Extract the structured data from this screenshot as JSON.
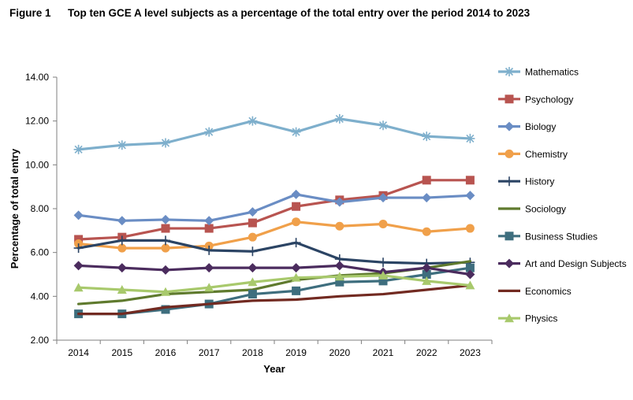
{
  "figure": {
    "number": "Figure 1",
    "title": "Top ten GCE A level subjects as a percentage of the total entry over the period 2014 to 2023"
  },
  "chart_data": {
    "type": "line",
    "title": "Top ten GCE A level subjects as a percentage of the total entry over the period 2014 to 2023",
    "xlabel": "Year",
    "ylabel": "Percentage of total entry",
    "categories": [
      "2014",
      "2015",
      "2016",
      "2017",
      "2018",
      "2019",
      "2020",
      "2021",
      "2022",
      "2023"
    ],
    "ylim": [
      2,
      14
    ],
    "yticks": [
      "2.00",
      "4.00",
      "6.00",
      "8.00",
      "10.00",
      "12.00",
      "14.00"
    ],
    "grid": false,
    "legend_position": "right",
    "series": [
      {
        "name": "Mathematics",
        "color": "#7EAFCC",
        "marker": "star",
        "values": [
          10.7,
          10.9,
          11.0,
          11.5,
          12.0,
          11.5,
          12.1,
          11.8,
          11.3,
          11.2
        ]
      },
      {
        "name": "Psychology",
        "color": "#B85450",
        "marker": "square",
        "values": [
          6.6,
          6.7,
          7.1,
          7.1,
          7.35,
          8.1,
          8.4,
          8.6,
          9.3,
          9.3
        ]
      },
      {
        "name": "Biology",
        "color": "#6A8DC4",
        "marker": "diamond",
        "values": [
          7.7,
          7.45,
          7.5,
          7.45,
          7.85,
          8.65,
          8.3,
          8.5,
          8.5,
          8.6
        ]
      },
      {
        "name": "Chemistry",
        "color": "#F0A04A",
        "marker": "circle",
        "values": [
          6.4,
          6.2,
          6.2,
          6.3,
          6.7,
          7.4,
          7.2,
          7.3,
          6.95,
          7.1
        ]
      },
      {
        "name": "History",
        "color": "#2B4464",
        "marker": "plus",
        "values": [
          6.2,
          6.55,
          6.55,
          6.1,
          6.05,
          6.45,
          5.7,
          5.55,
          5.5,
          5.55
        ]
      },
      {
        "name": "Sociology",
        "color": "#5F7A2E",
        "marker": "none",
        "values": [
          3.65,
          3.8,
          4.1,
          4.2,
          4.3,
          4.75,
          4.95,
          5.05,
          5.3,
          5.6
        ]
      },
      {
        "name": "Business Studies",
        "color": "#3E6E7E",
        "marker": "square",
        "values": [
          3.2,
          3.2,
          3.4,
          3.65,
          4.1,
          4.25,
          4.65,
          4.7,
          5.0,
          5.3
        ]
      },
      {
        "name": "Art and Design Subjects",
        "color": "#4B2C5E",
        "marker": "diamond",
        "values": [
          5.4,
          5.3,
          5.2,
          5.3,
          5.3,
          5.3,
          5.4,
          5.1,
          5.3,
          5.0
        ]
      },
      {
        "name": "Economics",
        "color": "#722A21",
        "marker": "none",
        "values": [
          3.2,
          3.2,
          3.5,
          3.65,
          3.8,
          3.85,
          4.0,
          4.1,
          4.3,
          4.5
        ]
      },
      {
        "name": "Physics",
        "color": "#A8C96C",
        "marker": "triangle",
        "values": [
          4.4,
          4.3,
          4.2,
          4.4,
          4.65,
          4.85,
          4.9,
          4.95,
          4.7,
          4.5
        ]
      }
    ]
  }
}
